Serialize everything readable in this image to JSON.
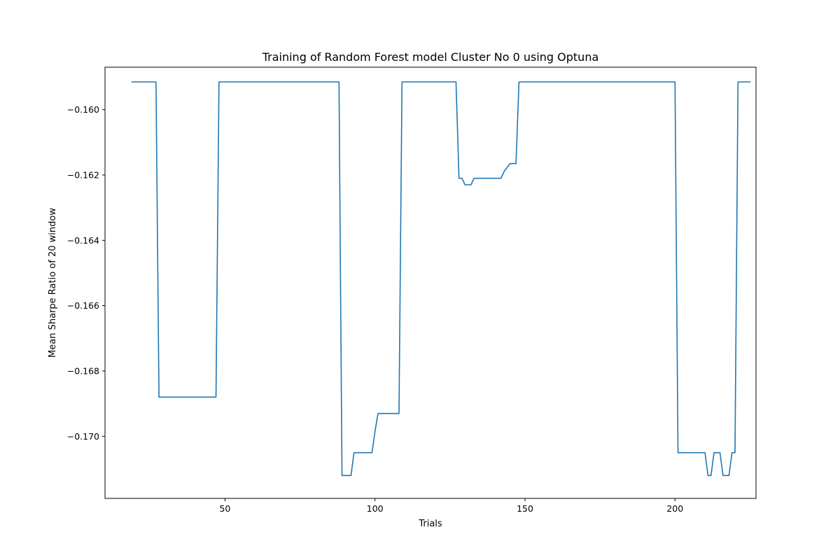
{
  "chart_data": {
    "type": "line",
    "title": "Training of Random Forest model Cluster No 0 using Optuna",
    "xlabel": "Trials",
    "ylabel": "Mean Sharpe Ratio of 20 window",
    "xlim": [
      10,
      227
    ],
    "ylim": [
      -0.1719,
      -0.1587
    ],
    "xticks": [
      50,
      100,
      150,
      200
    ],
    "xtick_labels": [
      "50",
      "100",
      "150",
      "200"
    ],
    "yticks": [
      -0.16,
      -0.162,
      -0.164,
      -0.166,
      -0.168,
      -0.17
    ],
    "ytick_labels": [
      "−0.160",
      "−0.162",
      "−0.164",
      "−0.166",
      "−0.168",
      "−0.170"
    ],
    "grid": false,
    "series": [
      {
        "color": "#1f77b4",
        "points": [
          [
            19,
            -0.15915
          ],
          [
            27,
            -0.15915
          ],
          [
            28,
            -0.1688
          ],
          [
            47,
            -0.1688
          ],
          [
            48,
            -0.15915
          ],
          [
            88,
            -0.15915
          ],
          [
            89,
            -0.1712
          ],
          [
            92,
            -0.1712
          ],
          [
            93,
            -0.1705
          ],
          [
            99,
            -0.1705
          ],
          [
            100,
            -0.16985
          ],
          [
            101,
            -0.1693
          ],
          [
            108,
            -0.1693
          ],
          [
            109,
            -0.15915
          ],
          [
            127,
            -0.15915
          ],
          [
            128,
            -0.1621
          ],
          [
            129,
            -0.1621
          ],
          [
            130,
            -0.1623
          ],
          [
            132,
            -0.1623
          ],
          [
            133,
            -0.1621
          ],
          [
            142,
            -0.1621
          ],
          [
            143,
            -0.1619
          ],
          [
            145,
            -0.16165
          ],
          [
            147,
            -0.16165
          ],
          [
            148,
            -0.15915
          ],
          [
            200,
            -0.15915
          ],
          [
            201,
            -0.1705
          ],
          [
            210,
            -0.1705
          ],
          [
            211,
            -0.1712
          ],
          [
            212,
            -0.1712
          ],
          [
            213,
            -0.1705
          ],
          [
            215,
            -0.1705
          ],
          [
            216,
            -0.1712
          ],
          [
            218,
            -0.1712
          ],
          [
            219,
            -0.1705
          ],
          [
            220,
            -0.1705
          ],
          [
            221,
            -0.15915
          ],
          [
            225,
            -0.15915
          ]
        ]
      }
    ]
  }
}
